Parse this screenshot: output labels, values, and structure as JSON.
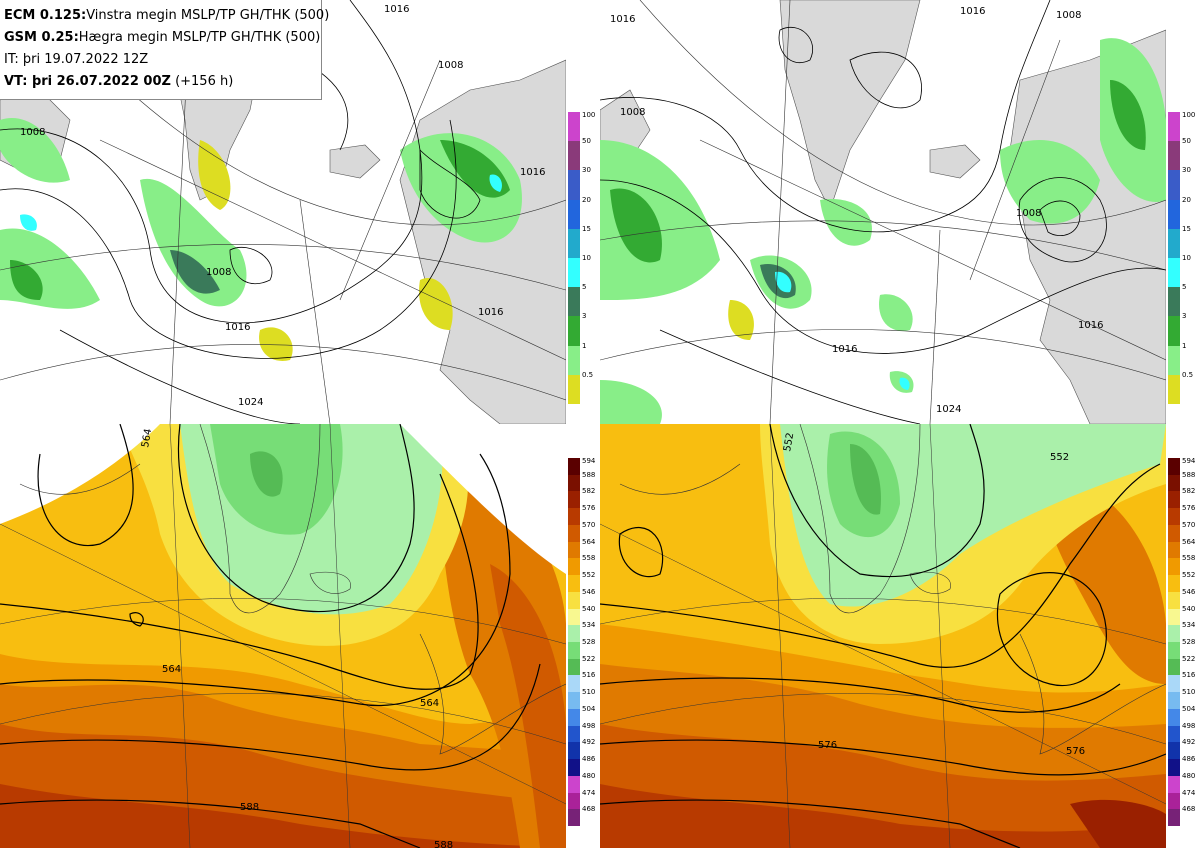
{
  "header": {
    "line1": {
      "bold": "ECM 0.125:",
      "rest": "Vinstra megin MSLP/TP GH/THK (500)"
    },
    "line2": {
      "bold": "GSM 0.25:",
      "rest": "Hægra megin MSLP/TP GH/THK (500)"
    },
    "line3": {
      "bold": "",
      "rest": "IT: þri 19.07.2022 12Z"
    },
    "line4": {
      "bold": "VT: þri 26.07.2022 00Z",
      "rest": " (+156 h)"
    }
  },
  "precip_scale": {
    "ticks": [
      "100",
      "50",
      "30",
      "20",
      "15",
      "10",
      "5",
      "3",
      "1",
      "0.5"
    ],
    "colors": [
      "#cc44cc",
      "#8a3a7a",
      "#3a5cc8",
      "#2266dd",
      "#22aacc",
      "#33ffff",
      "#3a7a5a",
      "#33aa33",
      "#88ee88",
      "#dddd22"
    ]
  },
  "thickness_scale": {
    "ticks": [
      "594",
      "588",
      "582",
      "576",
      "570",
      "564",
      "558",
      "552",
      "546",
      "540",
      "534",
      "528",
      "522",
      "516",
      "510",
      "504",
      "498",
      "492",
      "486",
      "480",
      "474",
      "468"
    ],
    "colors": [
      "#5a0000",
      "#7a1000",
      "#9a2000",
      "#b83a00",
      "#d05a00",
      "#e07a00",
      "#f09a00",
      "#f8be10",
      "#f8e040",
      "#f8f890",
      "#aaf0aa",
      "#77dd77",
      "#55bb55",
      "#aad8f8",
      "#77bbf0",
      "#4488e8",
      "#2255cc",
      "#1133aa",
      "#111188",
      "#cc44cc",
      "#aa2299",
      "#772277"
    ]
  },
  "panels": {
    "tl": {
      "isobar_labels": [
        "1008",
        "1016",
        "1008",
        "1016",
        "1016",
        "1024",
        "1008",
        "1016"
      ]
    },
    "tr": {
      "isobar_labels": [
        "1016",
        "1008",
        "1008",
        "1016",
        "1016",
        "1024",
        "1016",
        "1008"
      ]
    },
    "bl": {
      "contour_labels": [
        "564",
        "564",
        "564",
        "588",
        "588"
      ]
    },
    "br": {
      "contour_labels": [
        "552",
        "552",
        "576",
        "576"
      ]
    }
  },
  "colors": {
    "land": "#d9d9d9",
    "ocean": "#ffffff",
    "contour": "#000000"
  }
}
